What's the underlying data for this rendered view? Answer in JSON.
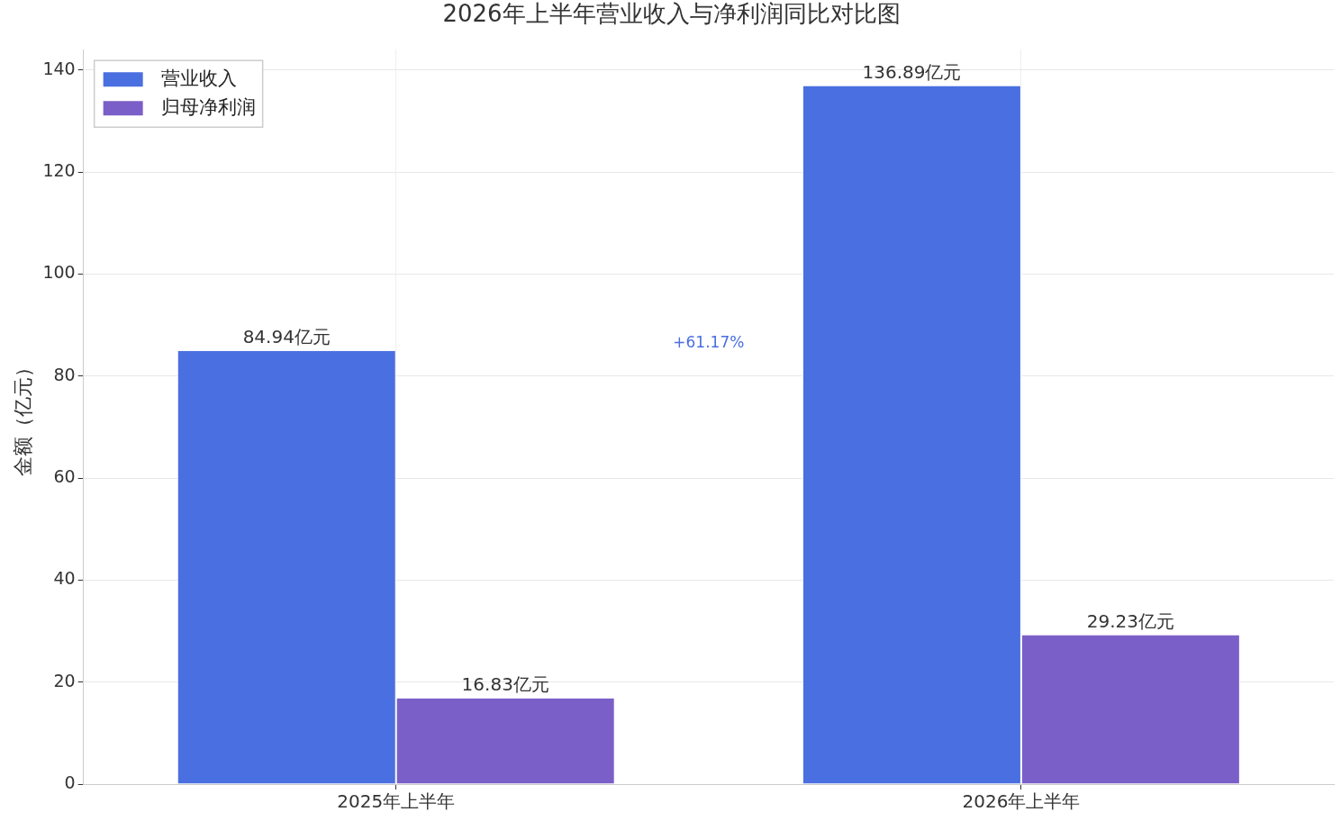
{
  "chart_data": {
    "type": "bar",
    "title": "2026年上半年营业收入与净利润同比对比图",
    "ylabel": "金额（亿元）",
    "categories": [
      "2025年上半年",
      "2026年上半年"
    ],
    "series": [
      {
        "name": "营业收入",
        "color": "#4a6fe0",
        "values": [
          84.94,
          136.89
        ],
        "value_labels": [
          "84.94亿元",
          "136.89亿元"
        ]
      },
      {
        "name": "归母净利润",
        "color": "#7b5fc8",
        "values": [
          16.83,
          29.23
        ],
        "value_labels": [
          "16.83亿元",
          "29.23亿元"
        ]
      }
    ],
    "annotations": [
      "+61.17%"
    ],
    "ylim": [
      0,
      144
    ],
    "yticks": [
      0,
      20,
      40,
      60,
      80,
      100,
      120,
      140
    ],
    "grid": true,
    "legend": "top left"
  }
}
